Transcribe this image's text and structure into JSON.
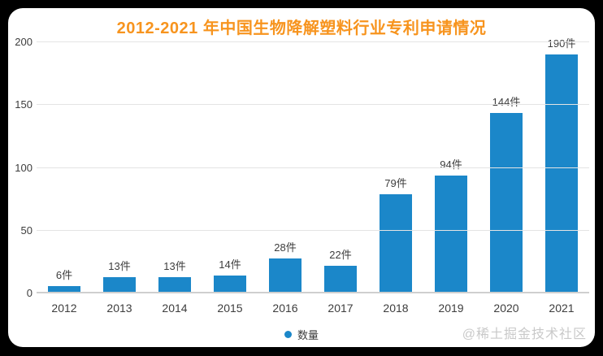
{
  "watermark": "@稀土掘金技术社区",
  "colors": {
    "bar": "#1b87c9",
    "title": "#f7941e",
    "background_outer": "#000000",
    "card": "#ffffff",
    "gridline": "#e4e4e4",
    "text": "#3d3d3d",
    "watermark": "#c9c9c9"
  },
  "chart_data": {
    "type": "bar",
    "title": "2012-2021 年中国生物降解塑料行业专利申请情况",
    "categories": [
      "2012",
      "2013",
      "2014",
      "2015",
      "2016",
      "2017",
      "2018",
      "2019",
      "2020",
      "2021"
    ],
    "values": [
      6,
      13,
      13,
      14,
      28,
      22,
      79,
      94,
      144,
      190
    ],
    "value_labels": [
      "6件",
      "13件",
      "13件",
      "14件",
      "28件",
      "22件",
      "79件",
      "94件",
      "144件",
      "190件"
    ],
    "unit": "件",
    "xlabel": "",
    "ylabel": "",
    "ylim": [
      0,
      200
    ],
    "y_ticks": [
      0,
      50,
      100,
      150,
      200
    ],
    "grid": "horizontal",
    "legend": {
      "position": "bottom-center",
      "items": [
        {
          "label": "数量",
          "color": "#1b87c9"
        }
      ]
    }
  }
}
